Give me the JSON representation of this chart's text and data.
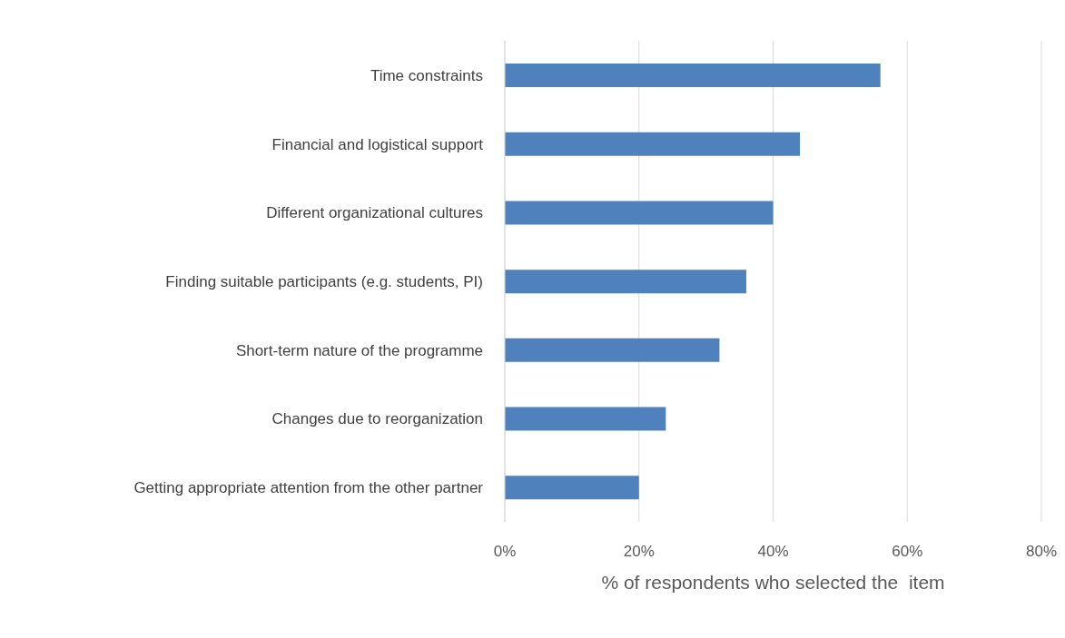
{
  "chart_data": {
    "type": "bar",
    "orientation": "horizontal",
    "xlabel": "% of respondents who selected the  item",
    "categories": [
      "Time constraints",
      "Financial and logistical support",
      "Different organizational cultures",
      "Finding suitable participants (e.g. students, PI)",
      "Short-term nature of the programme",
      "Changes due to reorganization",
      "Getting appropriate attention from the other partner"
    ],
    "values": [
      56,
      44,
      40,
      36,
      32,
      24,
      20
    ],
    "color": "#4f81bd",
    "xlim": [
      0,
      80
    ],
    "xticks": [
      {
        "value": 0,
        "label": "0%"
      },
      {
        "value": 20,
        "label": "20%"
      },
      {
        "value": 40,
        "label": "40%"
      },
      {
        "value": 60,
        "label": "60%"
      },
      {
        "value": 80,
        "label": "80%"
      }
    ],
    "grid": "x",
    "legend": false
  }
}
